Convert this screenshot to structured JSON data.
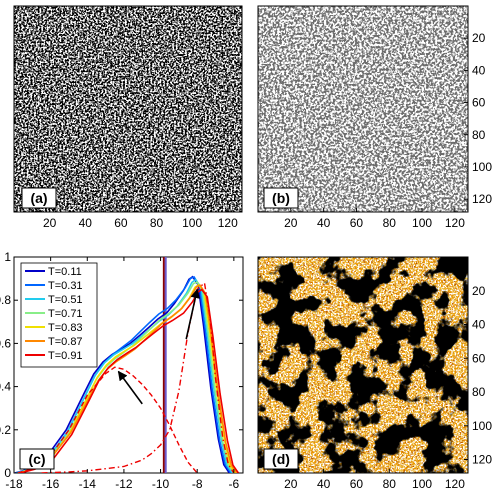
{
  "panels": {
    "a": {
      "label": "(a)"
    },
    "b": {
      "label": "(b)"
    },
    "d": {
      "label": "(d)"
    }
  },
  "chart_data": [
    {
      "type": "image",
      "panel": "a",
      "label": "(a)",
      "x_ticks": [
        "20",
        "40",
        "60",
        "80",
        "100",
        "120"
      ],
      "y_ticks": [],
      "description_visible": "dense black network texture",
      "colors": [
        "#000000",
        "#ffffff"
      ]
    },
    {
      "type": "image",
      "panel": "b",
      "label": "(b)",
      "x_ticks": [
        "20",
        "40",
        "60",
        "80",
        "100",
        "120"
      ],
      "y_ticks": [
        "20",
        "40",
        "60",
        "80",
        "100",
        "120"
      ],
      "colors": [
        "#333333",
        "#ffffff"
      ]
    },
    {
      "type": "line",
      "panel": "c",
      "label": "(c)",
      "xlim": [
        -18,
        -5.5
      ],
      "ylim": [
        0,
        1
      ],
      "x_ticks": [
        "-18",
        "-16",
        "-14",
        "-12",
        "-10",
        "-8",
        "-6"
      ],
      "y_ticks": [
        "0",
        "0.2",
        "0.4",
        "0.6",
        "0.8",
        "1"
      ],
      "legend": {
        "position": "top-left",
        "entries": [
          "T=0.11",
          "T=0.31",
          "T=0.51",
          "T=0.71",
          "T=0.83",
          "T=0.87",
          "T=0.91"
        ]
      },
      "series": [
        {
          "name": "T=0.11",
          "color": "#0000c8",
          "shift": -0.25,
          "scale": 0.96
        },
        {
          "name": "T=0.31",
          "color": "#0066ff",
          "shift": -0.17,
          "scale": 0.97
        },
        {
          "name": "T=0.51",
          "color": "#22ccee",
          "shift": -0.09,
          "scale": 0.95
        },
        {
          "name": "T=0.71",
          "color": "#88ee88",
          "shift": 0.0,
          "scale": 0.94
        },
        {
          "name": "T=0.83",
          "color": "#f0e000",
          "shift": 0.08,
          "scale": 0.93
        },
        {
          "name": "T=0.87",
          "color": "#ff8800",
          "shift": 0.16,
          "scale": 0.92
        },
        {
          "name": "T=0.91",
          "color": "#ee0000",
          "shift": 0.25,
          "scale": 0.91
        }
      ],
      "base_curve": {
        "x": [
          -17.8,
          -17.0,
          -16.0,
          -15.0,
          -14.0,
          -13.5,
          -13.0,
          -12.5,
          -12.0,
          -11.5,
          -11.0,
          -10.5,
          -10.0,
          -9.5,
          -9.0,
          -8.5,
          -8.2,
          -8.0,
          -7.7,
          -7.4,
          -7.0,
          -6.6,
          -6.3,
          -6.0
        ],
        "y": [
          0.0,
          0.02,
          0.08,
          0.2,
          0.38,
          0.47,
          0.53,
          0.57,
          0.6,
          0.63,
          0.67,
          0.71,
          0.75,
          0.78,
          0.82,
          0.88,
          0.93,
          0.94,
          0.9,
          0.7,
          0.4,
          0.16,
          0.04,
          0.0
        ]
      },
      "dashed_curves": [
        {
          "color": "#ee0000",
          "style": "dashed",
          "x": [
            -17.8,
            -17.0,
            -16.0,
            -15.0,
            -14.0,
            -13.0,
            -12.5,
            -12.0,
            -11.5,
            -11.0,
            -10.5,
            -10.0,
            -9.5,
            -9.0,
            -8.5,
            -8.0
          ],
          "y": [
            0.0,
            0.02,
            0.08,
            0.2,
            0.36,
            0.46,
            0.49,
            0.48,
            0.45,
            0.41,
            0.36,
            0.3,
            0.22,
            0.13,
            0.05,
            0.0
          ]
        },
        {
          "color": "#ee0000",
          "style": "dashdot",
          "x": [
            -16.5,
            -15.0,
            -14.0,
            -13.0,
            -12.0,
            -11.0,
            -10.5,
            -10.0,
            -9.5,
            -9.0,
            -8.5,
            -8.0,
            -7.6,
            -7.3,
            -7.0,
            -6.6,
            -6.3,
            -6.0
          ],
          "y": [
            0.0,
            0.005,
            0.01,
            0.02,
            0.03,
            0.06,
            0.09,
            0.13,
            0.2,
            0.38,
            0.65,
            0.85,
            0.88,
            0.72,
            0.44,
            0.16,
            0.04,
            0.0
          ]
        }
      ],
      "vertical_lines": [
        {
          "x": -9.82,
          "color": "#8b0000"
        },
        {
          "x": -9.72,
          "color": "#6a5acd"
        }
      ],
      "arrows": [
        {
          "from": [
            -11.0,
            0.32
          ],
          "to": [
            -12.3,
            0.47
          ]
        },
        {
          "from": [
            -8.6,
            0.62
          ],
          "to": [
            -8.0,
            0.85
          ]
        }
      ]
    },
    {
      "type": "image",
      "panel": "d",
      "label": "(d)",
      "x_ticks": [
        "20",
        "40",
        "60",
        "80",
        "100",
        "120"
      ],
      "y_ticks": [
        "20",
        "40",
        "60",
        "80",
        "100",
        "120"
      ],
      "colors": [
        "#000000",
        "#7a1a00",
        "#d04a00",
        "#f0a020",
        "#f8e060",
        "#ffffff"
      ]
    }
  ]
}
